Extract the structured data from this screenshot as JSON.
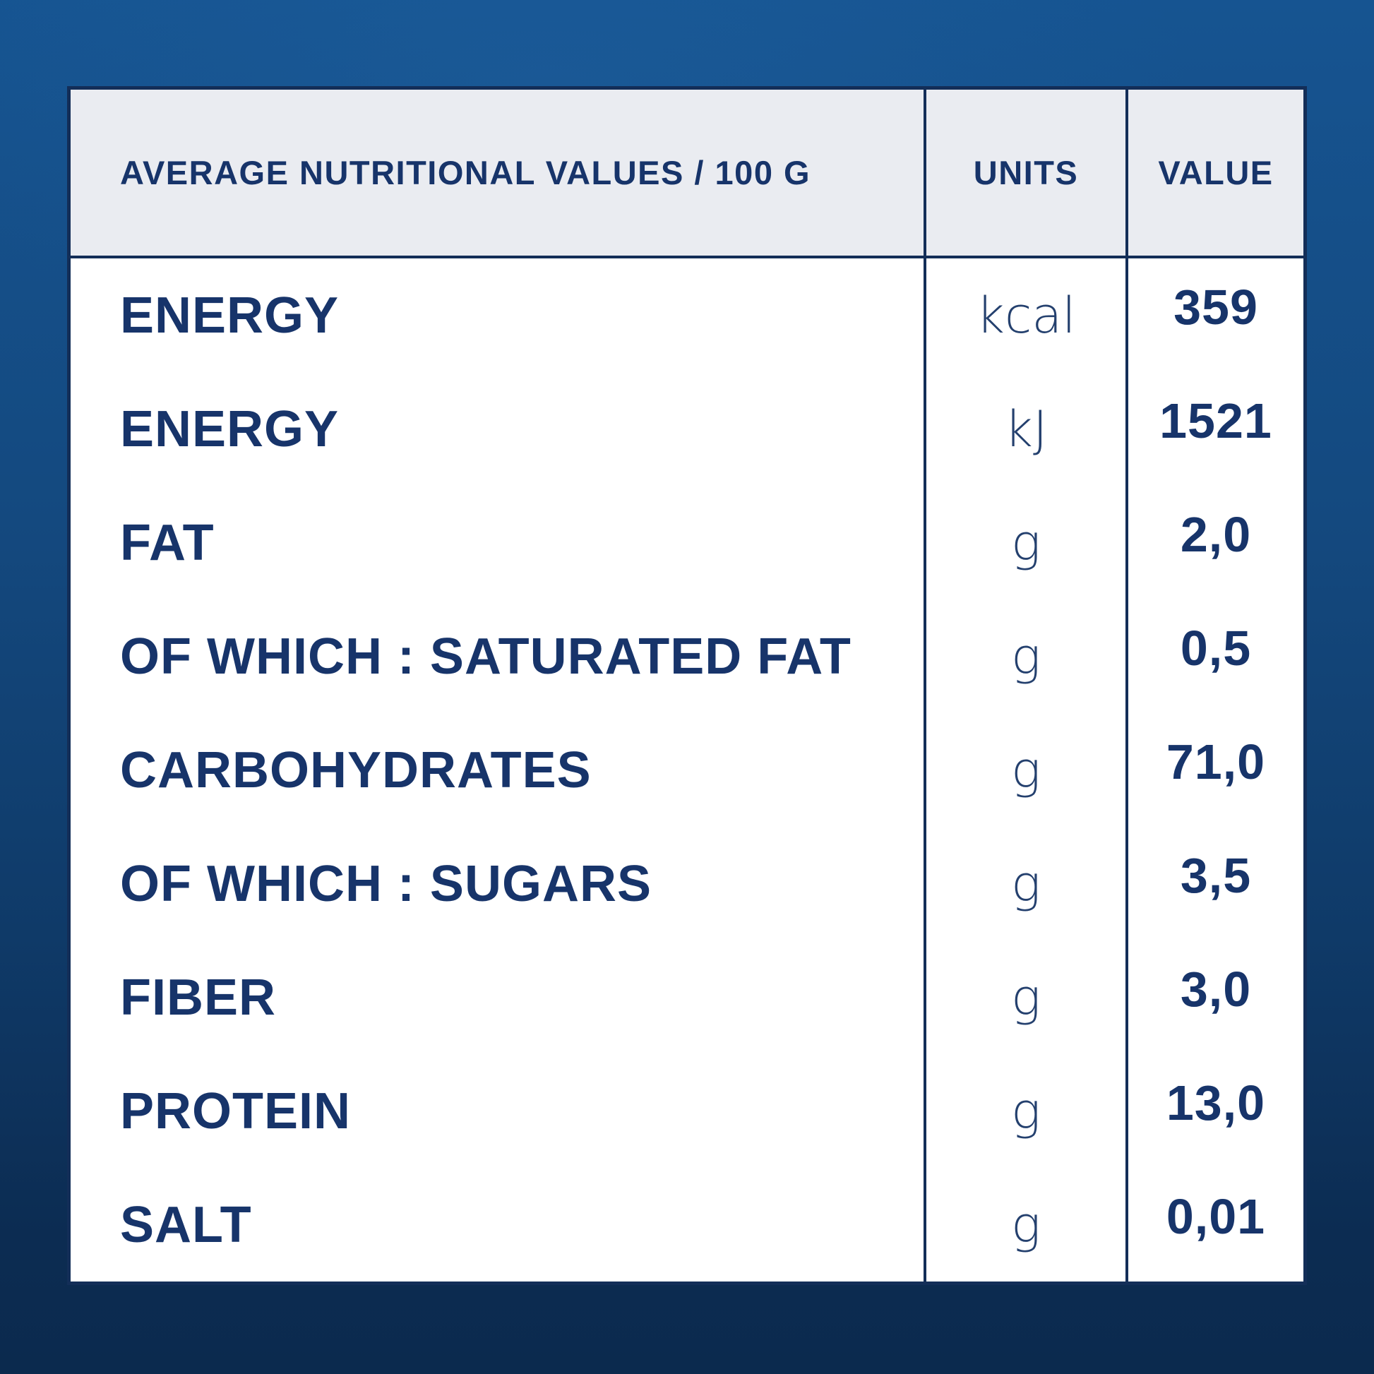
{
  "background": {
    "top_color": "#165491",
    "bottom_color": "#0B2A4E"
  },
  "colors": {
    "text_navy": "#17346A",
    "line_navy": "#132E58",
    "header_bg": "#EAECF1",
    "body_bg": "#FFFFFF"
  },
  "chart_data": {
    "type": "table",
    "title": "AVERAGE NUTRITIONAL VALUES / 100 G",
    "columns": [
      "AVERAGE NUTRITIONAL VALUES / 100 G",
      "UNITS",
      "VALUE"
    ],
    "rows": [
      {
        "label": "ENERGY",
        "unit": "kcal",
        "value": "359"
      },
      {
        "label": "ENERGY",
        "unit": "kJ",
        "value": "1521"
      },
      {
        "label": "FAT",
        "unit": "g",
        "value": "2,0"
      },
      {
        "label": "OF WHICH : SATURATED FAT",
        "unit": "g",
        "value": "0,5"
      },
      {
        "label": "CARBOHYDRATES",
        "unit": "g",
        "value": "71,0"
      },
      {
        "label": "OF WHICH : SUGARS",
        "unit": "g",
        "value": "3,5"
      },
      {
        "label": "FIBER",
        "unit": "g",
        "value": "3,0"
      },
      {
        "label": "PROTEIN",
        "unit": "g",
        "value": "13,0"
      },
      {
        "label": "SALT",
        "unit": "g",
        "value": "0,01"
      }
    ]
  }
}
